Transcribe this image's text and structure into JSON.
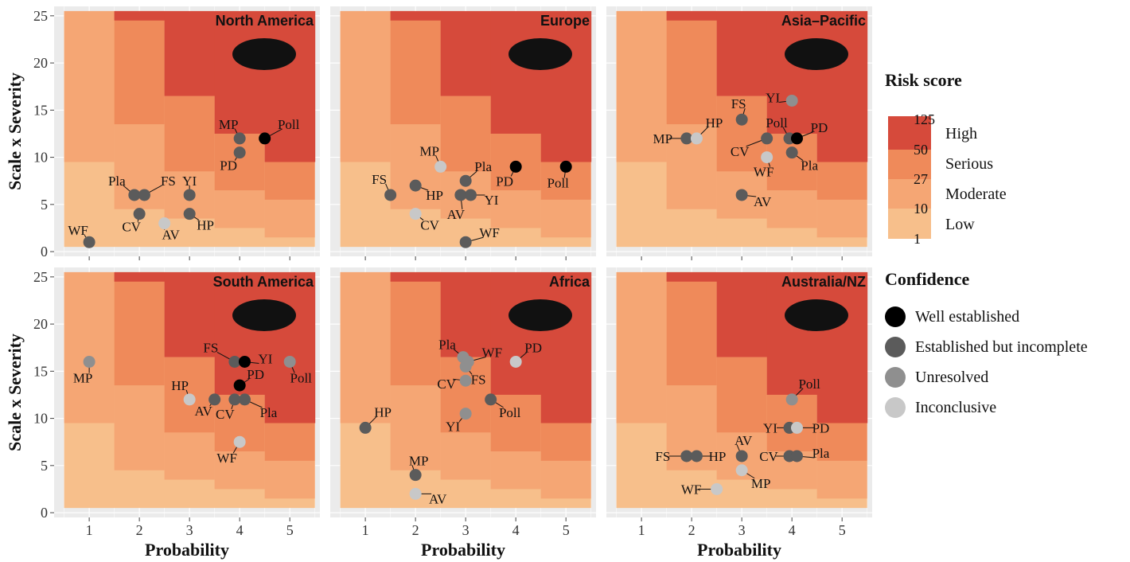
{
  "colors": {
    "panel_bg": "#ebebeb",
    "grid": "#ffffff",
    "low": "#f7bf8b",
    "moderate": "#f5a674",
    "serious": "#ef8a5a",
    "high": "#d64a3b",
    "conf_well": "#000000",
    "conf_established": "#5b5b5b",
    "conf_unresolved": "#8f8f8f",
    "conf_inconclusive": "#c8c8c8"
  },
  "legend": {
    "risk_title": "Risk score",
    "risk_breaks": [
      "125",
      "50",
      "27",
      "10",
      "1"
    ],
    "risk_levels": [
      "High",
      "Serious",
      "Moderate",
      "Low"
    ],
    "confidence_title": "Confidence",
    "confidence_levels": [
      {
        "key": "well",
        "label": "Well established"
      },
      {
        "key": "established",
        "label": "Established but incomplete"
      },
      {
        "key": "unresolved",
        "label": "Unresolved"
      },
      {
        "key": "inconclusive",
        "label": "Inconclusive"
      }
    ]
  },
  "chart_data": [
    {
      "type": "scatter",
      "title": "North America",
      "xlabel": "Probability",
      "ylabel": "Scale x Severity",
      "x_ticks": [
        1,
        2,
        3,
        4,
        5
      ],
      "y_ticks": [
        0,
        5,
        10,
        15,
        20,
        25
      ],
      "xlim": [
        0.3,
        5.6
      ],
      "ylim": [
        -0.5,
        26
      ],
      "points": [
        {
          "label": "WF",
          "x": 1,
          "y": 1,
          "confidence": "established"
        },
        {
          "label": "Pla",
          "x": 1.9,
          "y": 6,
          "confidence": "established"
        },
        {
          "label": "FS",
          "x": 2.1,
          "y": 6,
          "confidence": "established"
        },
        {
          "label": "CV",
          "x": 2,
          "y": 4,
          "confidence": "established"
        },
        {
          "label": "AV",
          "x": 2.5,
          "y": 3,
          "confidence": "inconclusive"
        },
        {
          "label": "YI",
          "x": 3,
          "y": 6,
          "confidence": "established"
        },
        {
          "label": "HP",
          "x": 3,
          "y": 4,
          "confidence": "established"
        },
        {
          "label": "MP",
          "x": 4,
          "y": 12,
          "confidence": "established"
        },
        {
          "label": "PD",
          "x": 4,
          "y": 10.5,
          "confidence": "established"
        },
        {
          "label": "Poll",
          "x": 4.5,
          "y": 12,
          "confidence": "well"
        }
      ]
    },
    {
      "type": "scatter",
      "title": "Europe",
      "xlabel": "Probability",
      "ylabel": "",
      "x_ticks": [
        1,
        2,
        3,
        4,
        5
      ],
      "y_ticks": [
        0,
        5,
        10,
        15,
        20,
        25
      ],
      "xlim": [
        0.3,
        5.6
      ],
      "ylim": [
        -0.5,
        26
      ],
      "points": [
        {
          "label": "FS",
          "x": 1.5,
          "y": 6,
          "confidence": "established"
        },
        {
          "label": "HP",
          "x": 2,
          "y": 7,
          "confidence": "established"
        },
        {
          "label": "CV",
          "x": 2,
          "y": 4,
          "confidence": "inconclusive"
        },
        {
          "label": "MP",
          "x": 2.5,
          "y": 9,
          "confidence": "inconclusive"
        },
        {
          "label": "Pla",
          "x": 3,
          "y": 7.5,
          "confidence": "established"
        },
        {
          "label": "AV",
          "x": 2.9,
          "y": 6,
          "confidence": "established"
        },
        {
          "label": "YI",
          "x": 3.1,
          "y": 6,
          "confidence": "established"
        },
        {
          "label": "WF",
          "x": 3,
          "y": 1,
          "confidence": "established"
        },
        {
          "label": "PD",
          "x": 4,
          "y": 9,
          "confidence": "well"
        },
        {
          "label": "Poll",
          "x": 5,
          "y": 9,
          "confidence": "well"
        }
      ]
    },
    {
      "type": "scatter",
      "title": "Asia–Pacific",
      "xlabel": "Probability",
      "ylabel": "",
      "x_ticks": [
        1,
        2,
        3,
        4,
        5
      ],
      "y_ticks": [
        0,
        5,
        10,
        15,
        20,
        25
      ],
      "xlim": [
        0.3,
        5.6
      ],
      "ylim": [
        -0.5,
        26
      ],
      "points": [
        {
          "label": "MP",
          "x": 1.9,
          "y": 12,
          "confidence": "established"
        },
        {
          "label": "HP",
          "x": 2.1,
          "y": 12,
          "confidence": "inconclusive"
        },
        {
          "label": "FS",
          "x": 3,
          "y": 14,
          "confidence": "established"
        },
        {
          "label": "YI",
          "x": 4,
          "y": 16,
          "confidence": "unresolved"
        },
        {
          "label": "CV",
          "x": 3.5,
          "y": 12,
          "confidence": "established"
        },
        {
          "label": "WF",
          "x": 3.5,
          "y": 10,
          "confidence": "inconclusive"
        },
        {
          "label": "Poll",
          "x": 3.95,
          "y": 12,
          "confidence": "established"
        },
        {
          "label": "PD",
          "x": 4.1,
          "y": 12,
          "confidence": "well"
        },
        {
          "label": "Pla",
          "x": 4,
          "y": 10.5,
          "confidence": "established"
        },
        {
          "label": "AV",
          "x": 3,
          "y": 6,
          "confidence": "established"
        }
      ]
    },
    {
      "type": "scatter",
      "title": "South America",
      "xlabel": "Probability",
      "ylabel": "Scale x Severity",
      "x_ticks": [
        1,
        2,
        3,
        4,
        5
      ],
      "y_ticks": [
        0,
        5,
        10,
        15,
        20,
        25
      ],
      "xlim": [
        0.3,
        5.6
      ],
      "ylim": [
        -0.5,
        26
      ],
      "points": [
        {
          "label": "MP",
          "x": 1,
          "y": 16,
          "confidence": "unresolved"
        },
        {
          "label": "HP",
          "x": 3,
          "y": 12,
          "confidence": "inconclusive"
        },
        {
          "label": "AV",
          "x": 3.5,
          "y": 12,
          "confidence": "established"
        },
        {
          "label": "FS",
          "x": 3.9,
          "y": 16,
          "confidence": "established"
        },
        {
          "label": "YI",
          "x": 4.1,
          "y": 16,
          "confidence": "well"
        },
        {
          "label": "PD",
          "x": 4,
          "y": 13.5,
          "confidence": "well"
        },
        {
          "label": "CV",
          "x": 3.9,
          "y": 12,
          "confidence": "established"
        },
        {
          "label": "Pla",
          "x": 4.1,
          "y": 12,
          "confidence": "established"
        },
        {
          "label": "WF",
          "x": 4,
          "y": 7.5,
          "confidence": "inconclusive"
        },
        {
          "label": "Poll",
          "x": 5,
          "y": 16,
          "confidence": "unresolved"
        }
      ]
    },
    {
      "type": "scatter",
      "title": "Africa",
      "xlabel": "Probability",
      "ylabel": "",
      "x_ticks": [
        1,
        2,
        3,
        4,
        5
      ],
      "y_ticks": [
        0,
        5,
        10,
        15,
        20,
        25
      ],
      "xlim": [
        0.3,
        5.6
      ],
      "ylim": [
        -0.5,
        26
      ],
      "points": [
        {
          "label": "HP",
          "x": 1,
          "y": 9,
          "confidence": "established"
        },
        {
          "label": "MP",
          "x": 2,
          "y": 4,
          "confidence": "established"
        },
        {
          "label": "AV",
          "x": 2,
          "y": 2,
          "confidence": "inconclusive"
        },
        {
          "label": "Pla",
          "x": 2.95,
          "y": 16.5,
          "confidence": "unresolved"
        },
        {
          "label": "WF",
          "x": 3.05,
          "y": 16,
          "confidence": "unresolved"
        },
        {
          "label": "CV",
          "x": 3,
          "y": 14,
          "confidence": "unresolved"
        },
        {
          "label": "FS",
          "x": 3,
          "y": 15.5,
          "confidence": "unresolved"
        },
        {
          "label": "YI",
          "x": 3,
          "y": 10.5,
          "confidence": "unresolved"
        },
        {
          "label": "Poll",
          "x": 3.5,
          "y": 12,
          "confidence": "established"
        },
        {
          "label": "PD",
          "x": 4,
          "y": 16,
          "confidence": "inconclusive"
        }
      ]
    },
    {
      "type": "scatter",
      "title": "Australia/NZ",
      "xlabel": "Probability",
      "ylabel": "",
      "x_ticks": [
        1,
        2,
        3,
        4,
        5
      ],
      "y_ticks": [
        0,
        5,
        10,
        15,
        20,
        25
      ],
      "xlim": [
        0.3,
        5.6
      ],
      "ylim": [
        -0.5,
        26
      ],
      "points": [
        {
          "label": "FS",
          "x": 1.9,
          "y": 6,
          "confidence": "established"
        },
        {
          "label": "HP",
          "x": 2.1,
          "y": 6,
          "confidence": "established"
        },
        {
          "label": "AV",
          "x": 3,
          "y": 6,
          "confidence": "established"
        },
        {
          "label": "MP",
          "x": 3,
          "y": 4.5,
          "confidence": "inconclusive"
        },
        {
          "label": "WF",
          "x": 2.5,
          "y": 2.5,
          "confidence": "inconclusive"
        },
        {
          "label": "Poll",
          "x": 4,
          "y": 12,
          "confidence": "unresolved"
        },
        {
          "label": "YI",
          "x": 3.95,
          "y": 9,
          "confidence": "established"
        },
        {
          "label": "PD",
          "x": 4.1,
          "y": 9,
          "confidence": "inconclusive"
        },
        {
          "label": "CV",
          "x": 3.95,
          "y": 6,
          "confidence": "established"
        },
        {
          "label": "Pla",
          "x": 4.1,
          "y": 6,
          "confidence": "established"
        }
      ]
    }
  ]
}
